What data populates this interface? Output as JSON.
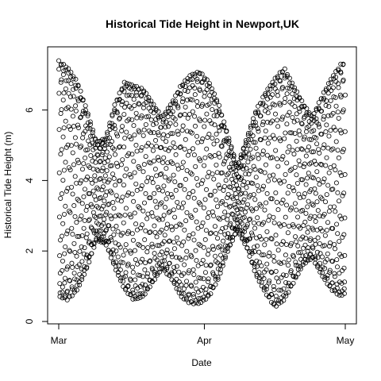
{
  "chart_data": {
    "type": "scatter",
    "title": "Historical Tide Height in Newport,UK",
    "xlabel": "Date",
    "ylabel": "Historical Tide Height (m)",
    "x_range": [
      "2013-03-01",
      "2013-05-01"
    ],
    "ylim": [
      0,
      7.5
    ],
    "x_ticks": [
      {
        "value": "2013-03-01",
        "label": "Mar"
      },
      {
        "value": "2013-04-01",
        "label": "Apr"
      },
      {
        "value": "2013-05-01",
        "label": "May"
      }
    ],
    "y_ticks": [
      {
        "value": 0,
        "label": "0"
      },
      {
        "value": 2,
        "label": "2"
      },
      {
        "value": 4,
        "label": "4"
      },
      {
        "value": 6,
        "label": "6"
      }
    ],
    "marker": "open-circle",
    "marker_color": "#000000",
    "grid": false,
    "legend": "none",
    "series": [
      {
        "sampling_interval_hours": 0.75,
        "envelope_daily": [
          {
            "date": "2013-03-01",
            "low": 0.7,
            "high": 7.4
          },
          {
            "date": "2013-03-03",
            "low": 0.6,
            "high": 7.2
          },
          {
            "date": "2013-03-05",
            "low": 0.9,
            "high": 6.8
          },
          {
            "date": "2013-03-07",
            "low": 1.5,
            "high": 6.0
          },
          {
            "date": "2013-03-09",
            "low": 2.3,
            "high": 5.1
          },
          {
            "date": "2013-03-11",
            "low": 2.2,
            "high": 5.2
          },
          {
            "date": "2013-03-13",
            "low": 1.5,
            "high": 6.2
          },
          {
            "date": "2013-03-15",
            "low": 0.9,
            "high": 6.8
          },
          {
            "date": "2013-03-17",
            "low": 0.6,
            "high": 6.7
          },
          {
            "date": "2013-03-19",
            "low": 0.7,
            "high": 6.6
          },
          {
            "date": "2013-03-21",
            "low": 1.1,
            "high": 6.2
          },
          {
            "date": "2013-03-23",
            "low": 1.5,
            "high": 5.8
          },
          {
            "date": "2013-03-25",
            "low": 1.2,
            "high": 6.2
          },
          {
            "date": "2013-03-27",
            "low": 0.7,
            "high": 6.7
          },
          {
            "date": "2013-03-29",
            "low": 0.5,
            "high": 7.0
          },
          {
            "date": "2013-03-31",
            "low": 0.5,
            "high": 7.1
          },
          {
            "date": "2013-04-02",
            "low": 0.7,
            "high": 6.8
          },
          {
            "date": "2013-04-04",
            "low": 1.2,
            "high": 6.2
          },
          {
            "date": "2013-04-06",
            "low": 2.0,
            "high": 5.3
          },
          {
            "date": "2013-04-08",
            "low": 2.6,
            "high": 4.4
          },
          {
            "date": "2013-04-10",
            "low": 2.1,
            "high": 5.2
          },
          {
            "date": "2013-04-12",
            "low": 1.3,
            "high": 6.0
          },
          {
            "date": "2013-04-14",
            "low": 0.8,
            "high": 6.5
          },
          {
            "date": "2013-04-16",
            "low": 0.4,
            "high": 6.9
          },
          {
            "date": "2013-04-18",
            "low": 0.6,
            "high": 7.2
          },
          {
            "date": "2013-04-20",
            "low": 1.1,
            "high": 6.7
          },
          {
            "date": "2013-04-22",
            "low": 1.6,
            "high": 6.2
          },
          {
            "date": "2013-04-24",
            "low": 1.8,
            "high": 5.8
          },
          {
            "date": "2013-04-26",
            "low": 1.3,
            "high": 6.4
          },
          {
            "date": "2013-04-28",
            "low": 0.9,
            "high": 6.9
          },
          {
            "date": "2013-04-30",
            "low": 0.7,
            "high": 7.3
          },
          {
            "date": "2013-05-01",
            "low": 0.8,
            "high": 7.4
          }
        ]
      }
    ]
  }
}
